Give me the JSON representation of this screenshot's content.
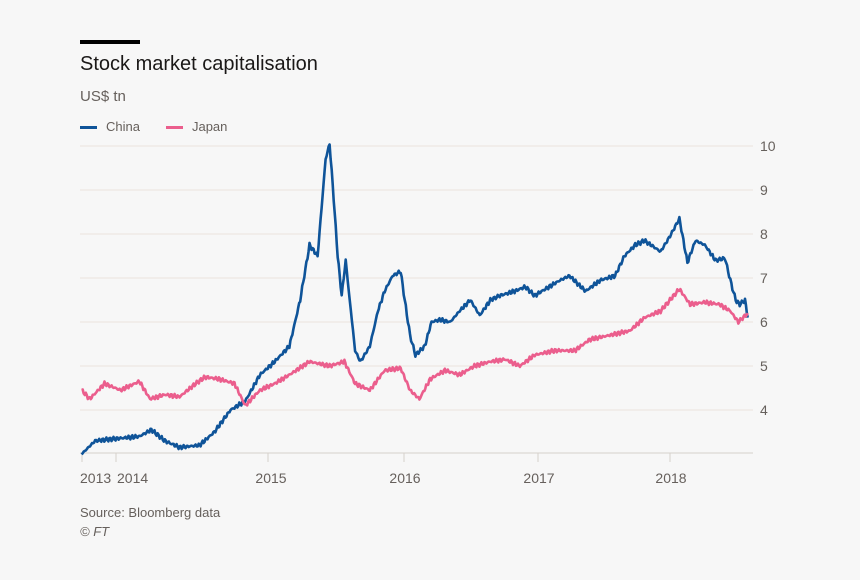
{
  "chart_data": {
    "type": "line",
    "title": "Stock market capitalisation",
    "ylabel": "US$ tn",
    "source": "Source: Bloomberg data",
    "copyright": "© FT",
    "ylim": [
      3,
      10
    ],
    "yticks": [
      "4",
      "5",
      "6",
      "7",
      "8",
      "9",
      "10"
    ],
    "xticks": [
      "2013",
      "2014",
      "2015",
      "2016",
      "2017",
      "2018"
    ],
    "xlim": [
      2013.61,
      2018.6
    ],
    "grid": true,
    "legend_position": "top-left",
    "y_axis_side": "right",
    "series": [
      {
        "name": "China",
        "color": "#0f5499",
        "x": [
          2013.61,
          2013.71,
          2013.87,
          2014.04,
          2014.13,
          2014.23,
          2014.34,
          2014.49,
          2014.6,
          2014.72,
          2014.83,
          2014.94,
          2015.05,
          2015.16,
          2015.24,
          2015.31,
          2015.37,
          2015.43,
          2015.46,
          2015.49,
          2015.52,
          2015.55,
          2015.58,
          2015.61,
          2015.65,
          2015.69,
          2015.76,
          2015.82,
          2015.87,
          2015.93,
          2015.99,
          2016.02,
          2016.06,
          2016.1,
          2016.17,
          2016.22,
          2016.28,
          2016.36,
          2016.43,
          2016.51,
          2016.58,
          2016.66,
          2016.73,
          2016.84,
          2016.92,
          2016.99,
          2017.07,
          2017.18,
          2017.25,
          2017.37,
          2017.48,
          2017.59,
          2017.66,
          2017.74,
          2017.81,
          2017.93,
          2018.0,
          2018.07,
          2018.13,
          2018.19,
          2018.26,
          2018.34,
          2018.41,
          2018.45,
          2018.49,
          2018.52,
          2018.56,
          2018.58
        ],
        "y": [
          3.0,
          3.3,
          3.35,
          3.4,
          3.55,
          3.3,
          3.15,
          3.2,
          3.5,
          4.0,
          4.2,
          4.8,
          5.1,
          5.45,
          6.5,
          7.75,
          7.5,
          9.7,
          10.05,
          8.8,
          7.5,
          6.6,
          7.4,
          6.5,
          5.35,
          5.1,
          5.45,
          6.25,
          6.7,
          7.05,
          7.15,
          6.5,
          5.7,
          5.25,
          5.45,
          6.0,
          6.05,
          6.0,
          6.25,
          6.5,
          6.15,
          6.5,
          6.6,
          6.7,
          6.8,
          6.6,
          6.75,
          6.95,
          7.05,
          6.7,
          6.95,
          7.05,
          7.5,
          7.75,
          7.85,
          7.6,
          7.95,
          8.35,
          7.35,
          7.85,
          7.75,
          7.4,
          7.45,
          6.95,
          6.5,
          6.4,
          6.5,
          6.1
        ]
      },
      {
        "name": "Japan",
        "color": "#eb5e8d",
        "x": [
          2013.61,
          2013.67,
          2013.78,
          2013.9,
          2014.04,
          2014.12,
          2014.23,
          2014.34,
          2014.46,
          2014.53,
          2014.64,
          2014.75,
          2014.83,
          2014.94,
          2015.05,
          2015.16,
          2015.31,
          2015.46,
          2015.57,
          2015.65,
          2015.76,
          2015.87,
          2015.99,
          2016.06,
          2016.13,
          2016.21,
          2016.32,
          2016.43,
          2016.54,
          2016.66,
          2016.77,
          2016.88,
          2016.99,
          2017.14,
          2017.29,
          2017.4,
          2017.55,
          2017.7,
          2017.81,
          2017.93,
          2018.0,
          2018.07,
          2018.15,
          2018.26,
          2018.37,
          2018.45,
          2018.51,
          2018.58
        ],
        "y": [
          4.45,
          4.25,
          4.6,
          4.45,
          4.65,
          4.25,
          4.35,
          4.3,
          4.6,
          4.75,
          4.7,
          4.6,
          4.1,
          4.45,
          4.6,
          4.8,
          5.1,
          5.0,
          5.1,
          4.6,
          4.45,
          4.9,
          4.95,
          4.45,
          4.25,
          4.7,
          4.9,
          4.8,
          5.0,
          5.1,
          5.15,
          5.0,
          5.25,
          5.35,
          5.35,
          5.6,
          5.7,
          5.8,
          6.1,
          6.25,
          6.5,
          6.75,
          6.4,
          6.45,
          6.4,
          6.25,
          6.0,
          6.2
        ]
      }
    ]
  }
}
